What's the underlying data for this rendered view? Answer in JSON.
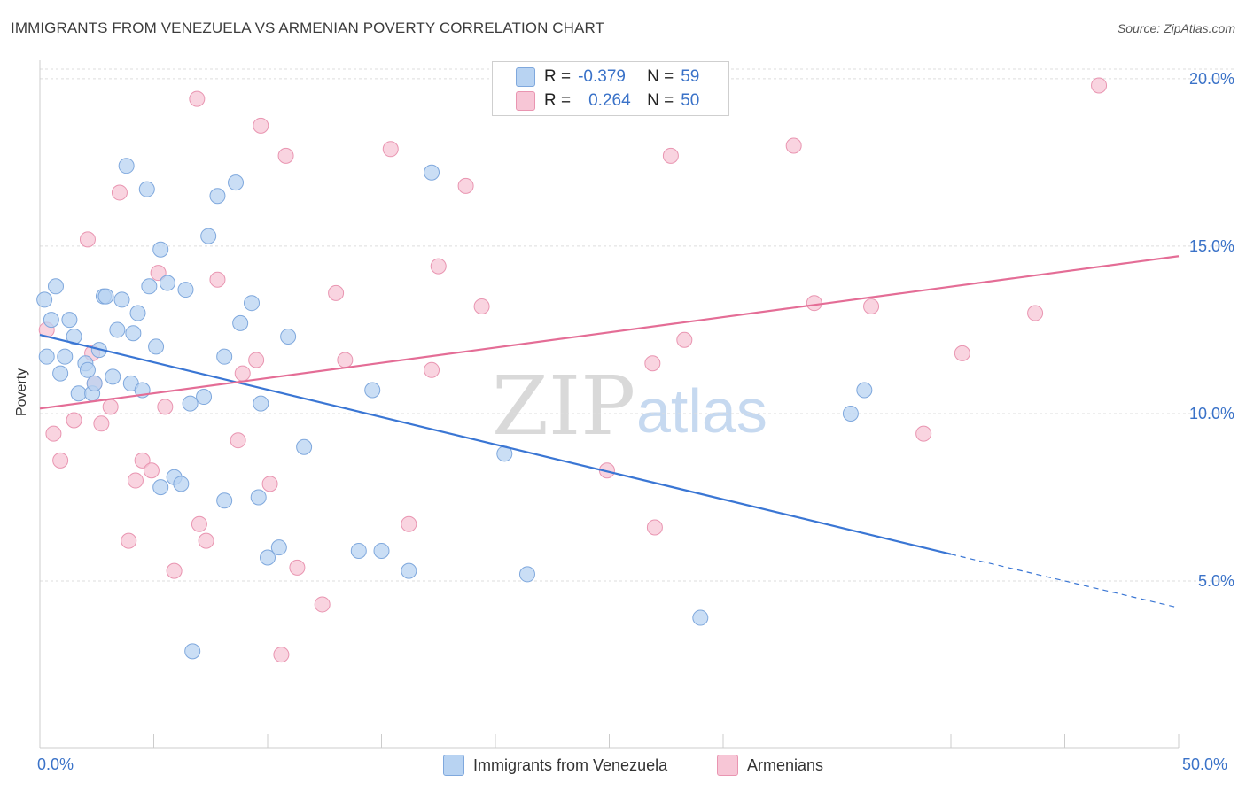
{
  "title": "IMMIGRANTS FROM VENEZUELA VS ARMENIAN POVERTY CORRELATION CHART",
  "source": "Source: ZipAtlas.com",
  "watermark": {
    "zip": "ZIP",
    "atlas": "atlas"
  },
  "legend": {
    "rows": [
      {
        "r_label": "R =",
        "r_value": "-0.379",
        "n_label": "N =",
        "n_value": "59"
      },
      {
        "r_label": "R =",
        "r_value": "0.264",
        "n_label": "N =",
        "n_value": "50"
      }
    ]
  },
  "bottom_legend": [
    "Immigrants from Venezuela",
    "Armenians"
  ],
  "x_tick_labels": {
    "left": "0.0%",
    "right": "50.0%"
  },
  "colors": {
    "blue_fill": "#b8d3f2",
    "blue_stroke": "#7fa8dd",
    "blue_line": "#3a76d4",
    "pink_fill": "#f7c6d6",
    "pink_stroke": "#e995b1",
    "pink_line": "#e46d96",
    "axis_text": "#3a72c8",
    "grid": "#dddddd"
  },
  "chart_data": {
    "type": "scatter",
    "title": "IMMIGRANTS FROM VENEZUELA VS ARMENIAN POVERTY CORRELATION CHART",
    "xlabel": "",
    "ylabel": "Poverty",
    "xlim": [
      0,
      50
    ],
    "ylim": [
      0,
      20.5
    ],
    "y_ticks": [
      {
        "value": 5,
        "label": "5.0%"
      },
      {
        "value": 10,
        "label": "10.0%"
      },
      {
        "value": 15,
        "label": "15.0%"
      },
      {
        "value": 20,
        "label": "20.0%"
      }
    ],
    "grid": true,
    "legend_position": "top-center",
    "series": [
      {
        "name": "Immigrants from Venezuela",
        "color": "#b8d3f2",
        "trend": {
          "x": [
            0,
            40
          ],
          "y": [
            12.35,
            5.8
          ],
          "dashed_to": [
            50,
            4.2
          ]
        },
        "points": [
          [
            0.2,
            13.4
          ],
          [
            0.3,
            11.7
          ],
          [
            0.5,
            12.8
          ],
          [
            0.7,
            13.8
          ],
          [
            0.9,
            11.2
          ],
          [
            1.1,
            11.7
          ],
          [
            1.3,
            12.8
          ],
          [
            1.5,
            12.3
          ],
          [
            1.7,
            10.6
          ],
          [
            2.0,
            11.5
          ],
          [
            2.1,
            11.3
          ],
          [
            2.3,
            10.6
          ],
          [
            2.4,
            10.9
          ],
          [
            2.6,
            11.9
          ],
          [
            2.8,
            13.5
          ],
          [
            2.9,
            13.5
          ],
          [
            3.2,
            11.1
          ],
          [
            3.4,
            12.5
          ],
          [
            3.6,
            13.4
          ],
          [
            3.8,
            17.4
          ],
          [
            4.0,
            10.9
          ],
          [
            4.1,
            12.4
          ],
          [
            4.3,
            13.0
          ],
          [
            4.5,
            10.7
          ],
          [
            4.7,
            16.7
          ],
          [
            4.8,
            13.8
          ],
          [
            5.1,
            12.0
          ],
          [
            5.3,
            14.9
          ],
          [
            5.6,
            13.9
          ],
          [
            5.9,
            8.1
          ],
          [
            6.4,
            13.7
          ],
          [
            6.6,
            10.3
          ],
          [
            7.2,
            10.5
          ],
          [
            7.4,
            15.3
          ],
          [
            7.8,
            16.5
          ],
          [
            8.1,
            11.7
          ],
          [
            8.6,
            16.9
          ],
          [
            8.8,
            12.7
          ],
          [
            9.3,
            13.3
          ],
          [
            9.6,
            7.5
          ],
          [
            10.0,
            5.7
          ],
          [
            10.5,
            6.0
          ],
          [
            10.9,
            12.3
          ],
          [
            11.6,
            9.0
          ],
          [
            14.0,
            5.9
          ],
          [
            14.6,
            10.7
          ],
          [
            15.0,
            5.9
          ],
          [
            16.2,
            5.3
          ],
          [
            17.2,
            17.2
          ],
          [
            20.4,
            8.8
          ],
          [
            21.4,
            5.2
          ],
          [
            29.0,
            3.9
          ],
          [
            35.6,
            10.0
          ],
          [
            36.2,
            10.7
          ],
          [
            5.3,
            7.8
          ],
          [
            6.2,
            7.9
          ],
          [
            8.1,
            7.4
          ],
          [
            9.7,
            10.3
          ],
          [
            6.7,
            2.9
          ]
        ]
      },
      {
        "name": "Armenians",
        "color": "#f7c6d6",
        "trend": {
          "x": [
            0,
            50
          ],
          "y": [
            10.15,
            14.7
          ]
        },
        "points": [
          [
            0.3,
            12.5
          ],
          [
            0.6,
            9.4
          ],
          [
            0.9,
            8.6
          ],
          [
            1.5,
            9.8
          ],
          [
            2.1,
            15.2
          ],
          [
            2.3,
            11.8
          ],
          [
            2.7,
            9.7
          ],
          [
            3.1,
            10.2
          ],
          [
            3.5,
            16.6
          ],
          [
            3.9,
            6.2
          ],
          [
            4.2,
            8.0
          ],
          [
            4.5,
            8.6
          ],
          [
            4.9,
            8.3
          ],
          [
            5.2,
            14.2
          ],
          [
            5.5,
            10.2
          ],
          [
            5.9,
            5.3
          ],
          [
            6.9,
            19.4
          ],
          [
            7.0,
            6.7
          ],
          [
            7.3,
            6.2
          ],
          [
            7.8,
            14.0
          ],
          [
            8.7,
            9.2
          ],
          [
            9.5,
            11.6
          ],
          [
            9.7,
            18.6
          ],
          [
            10.1,
            7.9
          ],
          [
            10.6,
            2.8
          ],
          [
            10.8,
            17.7
          ],
          [
            11.3,
            5.4
          ],
          [
            12.4,
            4.3
          ],
          [
            13.0,
            13.6
          ],
          [
            13.4,
            11.6
          ],
          [
            15.4,
            17.9
          ],
          [
            16.2,
            6.7
          ],
          [
            17.2,
            11.3
          ],
          [
            17.5,
            14.4
          ],
          [
            18.7,
            16.8
          ],
          [
            19.4,
            13.2
          ],
          [
            24.9,
            8.3
          ],
          [
            26.9,
            11.5
          ],
          [
            27.0,
            6.6
          ],
          [
            27.7,
            17.7
          ],
          [
            28.3,
            12.2
          ],
          [
            33.1,
            18.0
          ],
          [
            34.0,
            13.3
          ],
          [
            36.5,
            13.2
          ],
          [
            38.8,
            9.4
          ],
          [
            40.5,
            11.8
          ],
          [
            43.7,
            13.0
          ],
          [
            46.5,
            19.8
          ],
          [
            8.9,
            11.2
          ],
          [
            2.4,
            10.9
          ]
        ]
      }
    ]
  }
}
